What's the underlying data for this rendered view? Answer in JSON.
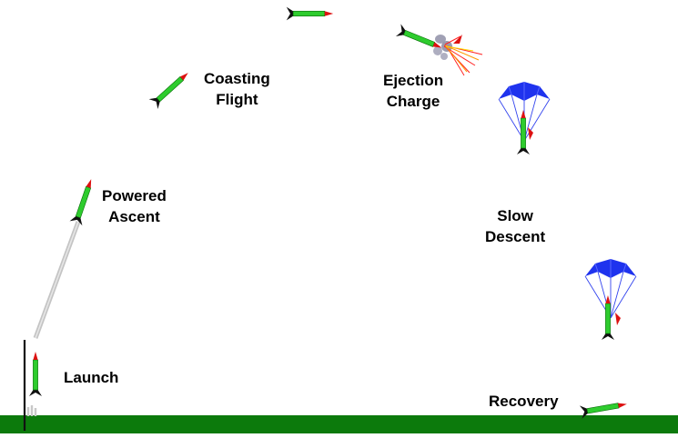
{
  "labels": {
    "launch": "Launch",
    "powered": [
      "Powered",
      "Ascent"
    ],
    "coasting": [
      "Coasting",
      "Flight"
    ],
    "ejection": [
      "Ejection",
      "Charge"
    ],
    "slow": [
      "Slow",
      "Descent"
    ],
    "recovery": "Recovery"
  },
  "icons": {
    "rocket": "rocket-icon",
    "parachute": "parachute-icon",
    "smoke": "smoke-icon",
    "exhaust": "exhaust-trail-icon",
    "ground": "ground-strip",
    "launch_rod": "launch-rod"
  },
  "colors": {
    "background": "#ffffff",
    "ground": "#0c7a0c",
    "rocket_body": "#2ecc2e",
    "rocket_nose": "#dd1111",
    "rocket_fins": "#111111",
    "parachute": "#1f33ee",
    "shroud_lines": "#3344ee",
    "smoke": "#a0a0b4",
    "exhaust": "#c4c4c4",
    "sparks": [
      "#ff2222",
      "#ff9900",
      "#ffd800"
    ]
  }
}
